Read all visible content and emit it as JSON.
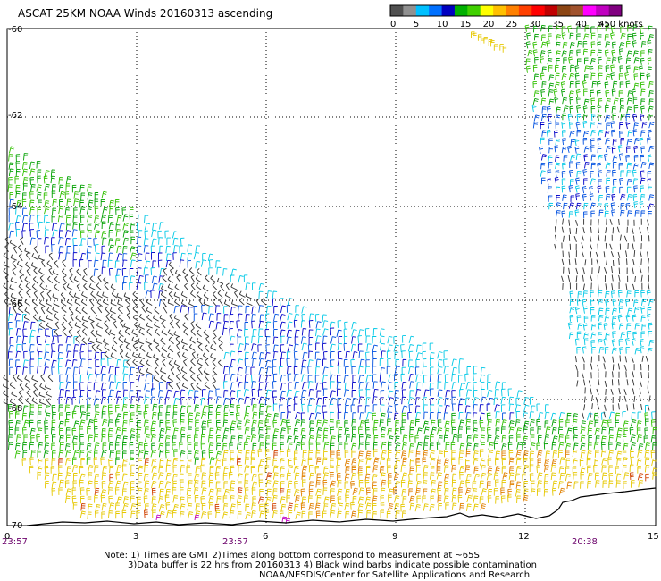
{
  "title": "ASCAT 25KM NOAA Winds 20160313 ascending",
  "legend": {
    "labels": [
      "0",
      "5",
      "10",
      "15",
      "20",
      "25",
      "30",
      "35",
      "40",
      "45",
      ">50 knots"
    ],
    "colors": [
      "#505050",
      "#909090",
      "#00c0ff",
      "#0070ff",
      "#0000c0",
      "#00b000",
      "#40d000",
      "#ffff00",
      "#ffc000",
      "#ff8000",
      "#ff4000",
      "#ff0000",
      "#c00000",
      "#8b4513",
      "#a0522d",
      "#ff00ff",
      "#c000c0",
      "#800080"
    ]
  },
  "axes": {
    "lat_labels": [
      "-60",
      "-62",
      "-64",
      "-66",
      "-68",
      "-70"
    ],
    "lon_labels": [
      "0",
      "3",
      "6",
      "9",
      "12",
      "15"
    ],
    "time_labels": [
      "23:57",
      "23:57",
      "20:38"
    ]
  },
  "notes": {
    "line1": "Note: 1) Times are GMT 2)Times along bottom correspond to measurement at ~65S",
    "line2": "3)Data buffer is 22 hrs from 20160313 4) Black wind barbs indicate possible contamination",
    "line3": "NOAA/NESDIS/Center for Satellite Applications and Research"
  },
  "barb_colors": {
    "gray": "#303030",
    "cyan": "#00c8e6",
    "blue": "#0050e0",
    "darkblue": "#0000c8",
    "green": "#00a000",
    "lime": "#30c000",
    "yellow": "#e6c800",
    "orange": "#e08000",
    "red": "#d04000",
    "magenta": "#c000c0"
  }
}
